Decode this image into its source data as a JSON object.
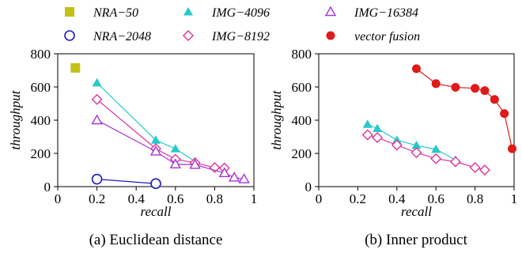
{
  "legend": [
    {
      "name": "NRA−50",
      "marker": "square-filled",
      "color": "#c2c217"
    },
    {
      "name": "NRA−2048",
      "marker": "circle-open",
      "color": "#1b1bb8"
    },
    {
      "name": "IMG−4096",
      "marker": "triangle-filled",
      "color": "#27c9c9"
    },
    {
      "name": "IMG−8192",
      "marker": "diamond-open",
      "color": "#e0349b"
    },
    {
      "name": "IMG−16384",
      "marker": "triangle-open",
      "color": "#a633d6"
    },
    {
      "name": "vector fusion",
      "marker": "circle-filled",
      "color": "#e01919"
    }
  ],
  "chart_data": [
    {
      "type": "line",
      "caption": "(a) Euclidean distance",
      "xlabel": "recall",
      "ylabel": "throughput",
      "xlim": [
        0,
        1
      ],
      "ylim": [
        0,
        800
      ],
      "xticks": [
        0,
        0.2,
        0.4,
        0.6,
        0.8,
        1
      ],
      "xtick_labels": [
        "0",
        "0.2",
        "0.4",
        "0.6",
        "0.8",
        "1"
      ],
      "yticks": [
        0,
        200,
        400,
        600,
        800
      ],
      "ytick_labels": [
        "0",
        "200",
        "400",
        "600",
        "800"
      ],
      "grid": false,
      "series": [
        {
          "name": "NRA−50",
          "x": [
            0.09
          ],
          "y": [
            715
          ]
        },
        {
          "name": "NRA−2048",
          "x": [
            0.2,
            0.5
          ],
          "y": [
            45,
            18
          ]
        },
        {
          "name": "IMG−4096",
          "x": [
            0.2,
            0.5,
            0.6,
            0.7
          ],
          "y": [
            625,
            280,
            228,
            152
          ]
        },
        {
          "name": "IMG−8192",
          "x": [
            0.2,
            0.5,
            0.6,
            0.7,
            0.8,
            0.85
          ],
          "y": [
            525,
            228,
            165,
            143,
            115,
            112
          ]
        },
        {
          "name": "IMG−16384",
          "x": [
            0.2,
            0.5,
            0.6,
            0.7,
            0.85,
            0.9,
            0.95
          ],
          "y": [
            400,
            212,
            135,
            132,
            82,
            55,
            45
          ]
        }
      ]
    },
    {
      "type": "line",
      "caption": "(b) Inner product",
      "xlabel": "recall",
      "ylabel": "throughput",
      "xlim": [
        0,
        1
      ],
      "ylim": [
        0,
        800
      ],
      "xticks": [
        0,
        0.2,
        0.4,
        0.6,
        0.8,
        1
      ],
      "xtick_labels": [
        "0",
        "0.2",
        "0.4",
        "0.6",
        "0.8",
        "1"
      ],
      "yticks": [
        0,
        200,
        400,
        600,
        800
      ],
      "ytick_labels": [
        "0",
        "200",
        "400",
        "600",
        "800"
      ],
      "grid": false,
      "series": [
        {
          "name": "IMG−4096",
          "x": [
            0.25,
            0.3,
            0.4,
            0.5,
            0.6,
            0.7
          ],
          "y": [
            375,
            350,
            280,
            248,
            225,
            160
          ]
        },
        {
          "name": "IMG−8192",
          "x": [
            0.25,
            0.3,
            0.4,
            0.5,
            0.6,
            0.7,
            0.8,
            0.85
          ],
          "y": [
            312,
            295,
            250,
            205,
            168,
            150,
            115,
            100
          ]
        },
        {
          "name": "vector fusion",
          "x": [
            0.5,
            0.6,
            0.7,
            0.8,
            0.85,
            0.9,
            0.95,
            0.99
          ],
          "y": [
            710,
            620,
            598,
            592,
            578,
            525,
            440,
            228
          ]
        }
      ]
    }
  ]
}
